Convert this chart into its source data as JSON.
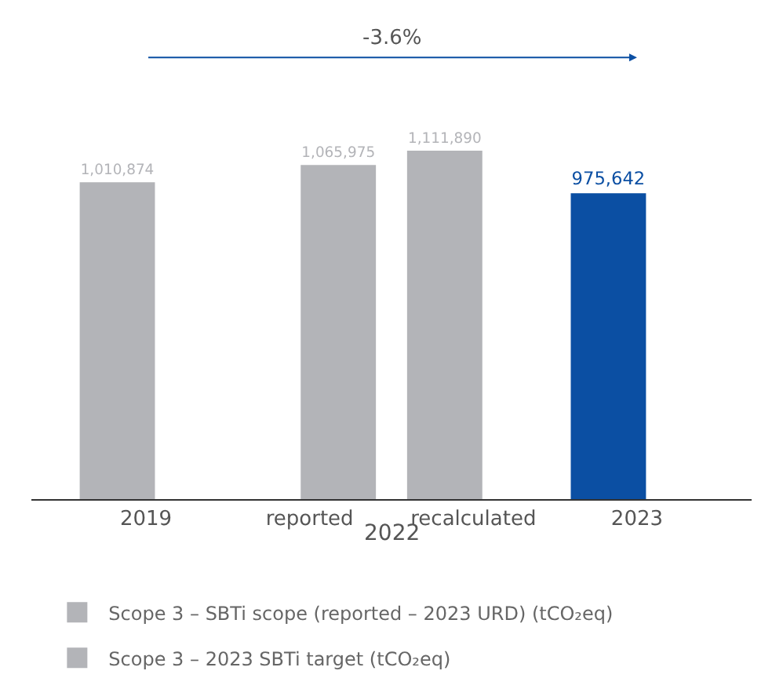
{
  "chart_data": {
    "type": "bar",
    "categories": [
      "2019",
      "reported",
      "recalculated",
      "2023"
    ],
    "series": [
      {
        "name": "Scope 3 – SBTi scope (reported – 2023 URD) (tCO₂eq)",
        "colors": [
          "#b3b4b8",
          null,
          "#b3b4b8",
          "#0b4fa3"
        ],
        "values": [
          1010874,
          null,
          1111890,
          975642
        ],
        "value_labels": [
          "1,010,874",
          null,
          "1,111,890",
          "975,642"
        ]
      },
      {
        "name": "Scope 3 – 2023 SBTi target (tCO₂eq)",
        "color": "#b3b4b8",
        "values": [
          null,
          1065975,
          null,
          null
        ],
        "value_labels": [
          null,
          "1,065,975",
          null,
          null
        ]
      }
    ],
    "annotations": [
      "-3.6%",
      "2022"
    ],
    "legend": "bottom"
  }
}
